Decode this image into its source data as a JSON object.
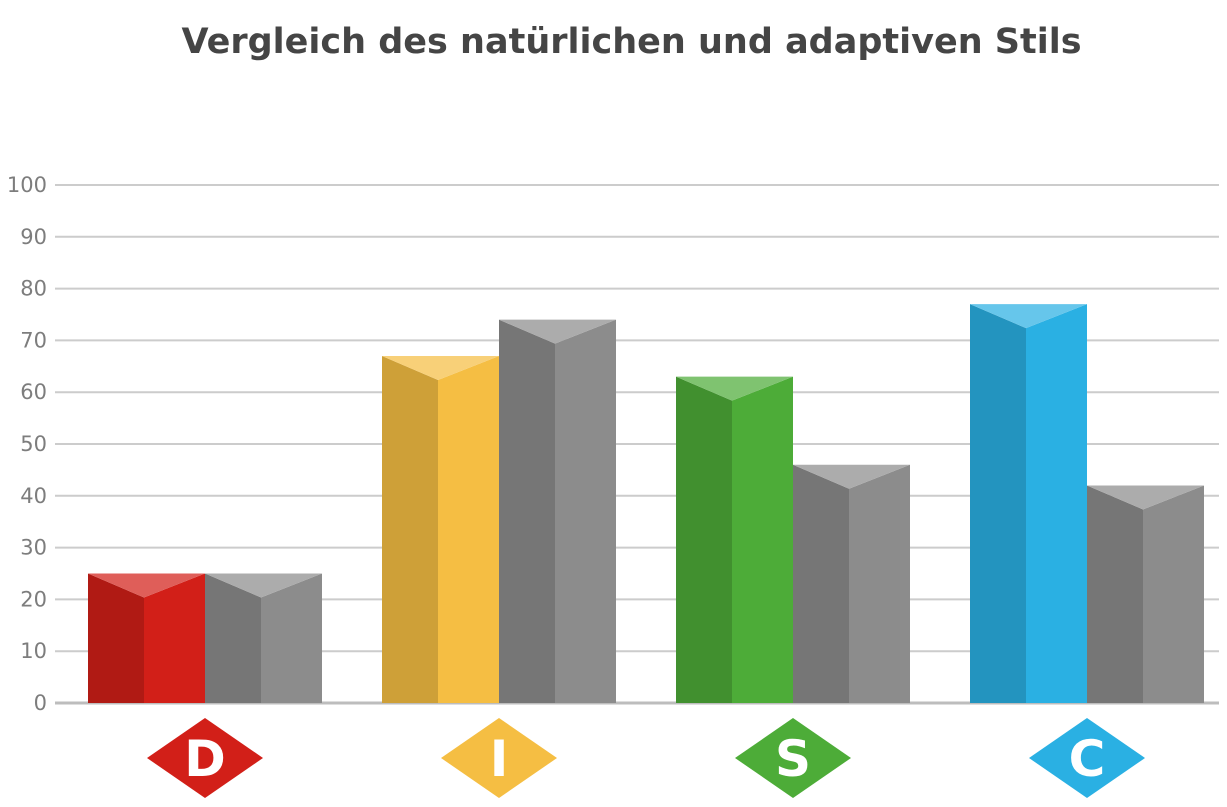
{
  "chart_data": {
    "type": "bar",
    "title": "Vergleich des natürlichen und adaptiven Stils",
    "xlabel": "",
    "ylabel": "",
    "ylim": [
      0,
      100
    ],
    "yticks": [
      0,
      10,
      20,
      30,
      40,
      50,
      60,
      70,
      80,
      90,
      100
    ],
    "grid": true,
    "categories": [
      "D",
      "I",
      "S",
      "C"
    ],
    "series": [
      {
        "values": [
          25,
          67,
          63,
          77
        ],
        "colors": [
          "#d21f18",
          "#f5be43",
          "#4dac38",
          "#2ab0e3"
        ]
      },
      {
        "values": [
          25,
          74,
          46,
          42
        ],
        "colors": [
          "#8c8c8c",
          "#8c8c8c",
          "#8c8c8c",
          "#8c8c8c"
        ]
      }
    ]
  }
}
